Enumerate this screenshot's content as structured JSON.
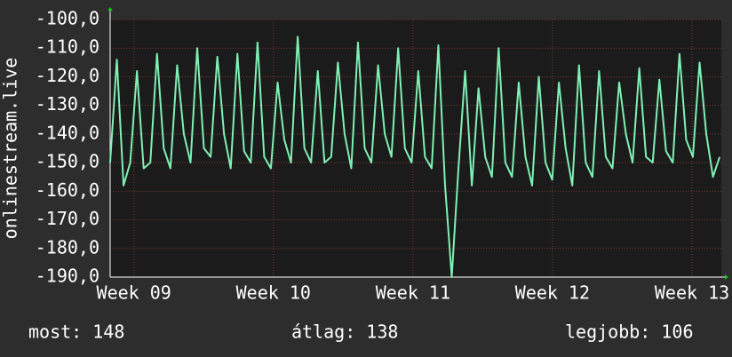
{
  "chart_data": {
    "type": "line",
    "ylabel": "onlinestream.live",
    "x": [
      8.83,
      8.878,
      8.926,
      8.974,
      9.022,
      9.07,
      9.118,
      9.166,
      9.214,
      9.262,
      9.31,
      9.358,
      9.406,
      9.454,
      9.502,
      9.55,
      9.598,
      9.646,
      9.694,
      9.742,
      9.79,
      9.838,
      9.886,
      9.934,
      9.982,
      10.03,
      10.078,
      10.126,
      10.174,
      10.222,
      10.27,
      10.318,
      10.366,
      10.414,
      10.462,
      10.51,
      10.558,
      10.606,
      10.654,
      10.702,
      10.75,
      10.798,
      10.846,
      10.894,
      10.942,
      10.99,
      11.038,
      11.086,
      11.134,
      11.182,
      11.23,
      11.278,
      11.326,
      11.374,
      11.422,
      11.47,
      11.518,
      11.566,
      11.614,
      11.662,
      11.71,
      11.758,
      11.806,
      11.854,
      11.902,
      11.95,
      11.998,
      12.046,
      12.094,
      12.142,
      12.19,
      12.238,
      12.286,
      12.334,
      12.382,
      12.43,
      12.478,
      12.526,
      12.574,
      12.622,
      12.67,
      12.718,
      12.766,
      12.814,
      12.862,
      12.91,
      12.958,
      13.006,
      13.054,
      13.102,
      13.15,
      13.198
    ],
    "series": [
      {
        "name": "onlinestream.live",
        "color": "#7ff0b4",
        "values": [
          -150,
          -114,
          -158,
          -150,
          -118,
          -152,
          -150,
          -112,
          -145,
          -152,
          -116,
          -140,
          -150,
          -110,
          -145,
          -148,
          -113,
          -140,
          -152,
          -112,
          -146,
          -150,
          -108,
          -148,
          -152,
          -122,
          -142,
          -150,
          -106,
          -145,
          -150,
          -118,
          -150,
          -148,
          -115,
          -140,
          -152,
          -108,
          -145,
          -150,
          -116,
          -140,
          -148,
          -110,
          -145,
          -150,
          -118,
          -148,
          -152,
          -109,
          -158,
          -190,
          -152,
          -118,
          -158,
          -124,
          -148,
          -155,
          -110,
          -150,
          -155,
          -122,
          -148,
          -158,
          -120,
          -150,
          -156,
          -122,
          -145,
          -158,
          -116,
          -150,
          -155,
          -118,
          -148,
          -152,
          -122,
          -140,
          -150,
          -117,
          -148,
          -150,
          -121,
          -146,
          -150,
          -112,
          -142,
          -148,
          -115,
          -140,
          -155,
          -148
        ]
      }
    ],
    "xlim": [
      8.83,
      13.21
    ],
    "xticks": [
      {
        "value": 9,
        "label": "Week 09"
      },
      {
        "value": 10,
        "label": "Week 10"
      },
      {
        "value": 11,
        "label": "Week 11"
      },
      {
        "value": 12,
        "label": "Week 12"
      },
      {
        "value": 13,
        "label": "Week 13"
      }
    ],
    "ylim": [
      -190,
      -100
    ],
    "yticks": [
      {
        "value": -190,
        "label": "-190,0"
      },
      {
        "value": -180,
        "label": "-180,0"
      },
      {
        "value": -170,
        "label": "-170,0"
      },
      {
        "value": -160,
        "label": "-160,0"
      },
      {
        "value": -150,
        "label": "-150,0"
      },
      {
        "value": -140,
        "label": "-140,0"
      },
      {
        "value": -130,
        "label": "-130,0"
      },
      {
        "value": -120,
        "label": "-120,0"
      },
      {
        "value": -110,
        "label": "-110,0"
      },
      {
        "value": -100,
        "label": "-100,0"
      }
    ],
    "grid": true,
    "stats": [
      "most: 148",
      "átlag: 138",
      "legjobb: 106"
    ]
  }
}
